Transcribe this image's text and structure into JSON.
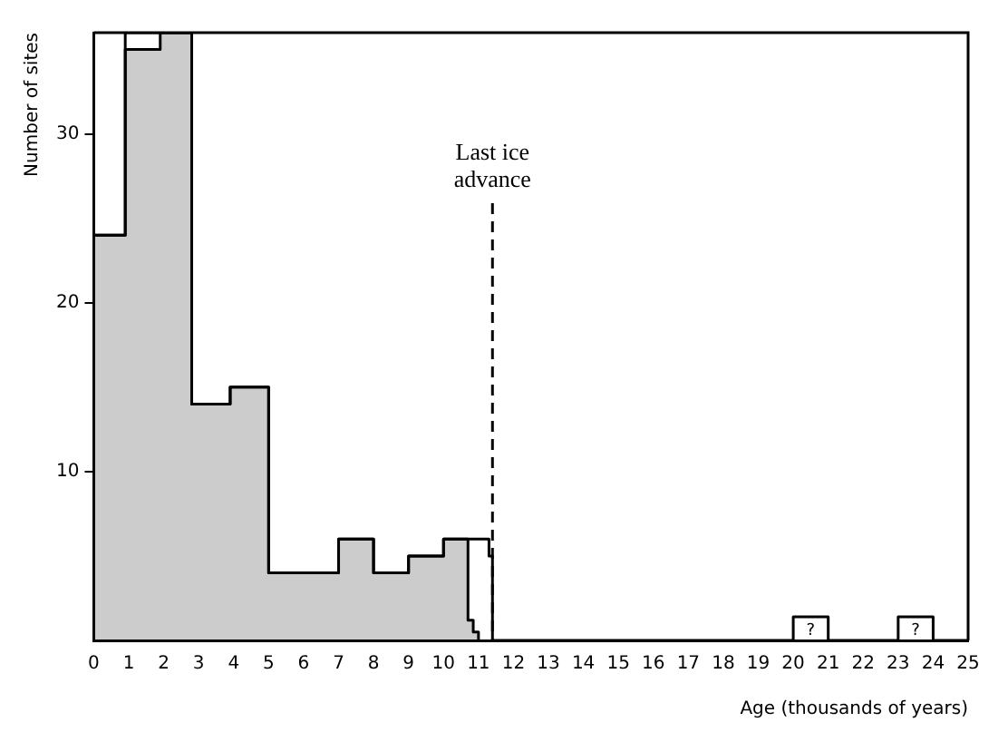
{
  "chart_data": {
    "type": "step",
    "xlabel": "Age (thousands of years)",
    "ylabel": "Number of sites",
    "xlim": [
      0,
      25
    ],
    "xticks": [
      0,
      1,
      2,
      3,
      4,
      5,
      6,
      7,
      8,
      9,
      10,
      11,
      12,
      13,
      14,
      15,
      16,
      17,
      18,
      19,
      20,
      21,
      22,
      23,
      24,
      25
    ],
    "ylim": [
      0,
      36
    ],
    "yticks": [
      10,
      20,
      30
    ],
    "series": [
      {
        "type": "step",
        "color": "#000000",
        "x": [
          0,
          0.9,
          2.8,
          3.9,
          5,
          7,
          8,
          9,
          10,
          11.3,
          11.4,
          20,
          21,
          23,
          24,
          25
        ],
        "values": [
          24,
          36,
          14,
          15,
          4,
          6,
          4,
          5,
          6,
          5,
          0,
          1.4,
          0,
          1.4,
          0,
          0
        ]
      },
      {
        "type": "area",
        "color": "#000000",
        "x": [
          0,
          0.9,
          1.9,
          2.8,
          3.9,
          5,
          7,
          8,
          9,
          10,
          10.7,
          10.85,
          11
        ],
        "values": [
          24,
          35,
          36,
          14,
          15,
          4,
          6,
          4,
          5,
          6,
          1.2,
          0.5,
          0
        ]
      }
    ],
    "ref_lines": [
      {
        "axis": "x",
        "value": 11.4,
        "label": "Last ice advance",
        "line_style": "dashed",
        "color": "#000000"
      }
    ],
    "annotations": [
      {
        "text": "?",
        "x": 20.5,
        "y": 1.4
      },
      {
        "text": "?",
        "x": 23.5,
        "y": 1.4
      }
    ],
    "grid": false,
    "legend": false,
    "marker": "none"
  }
}
